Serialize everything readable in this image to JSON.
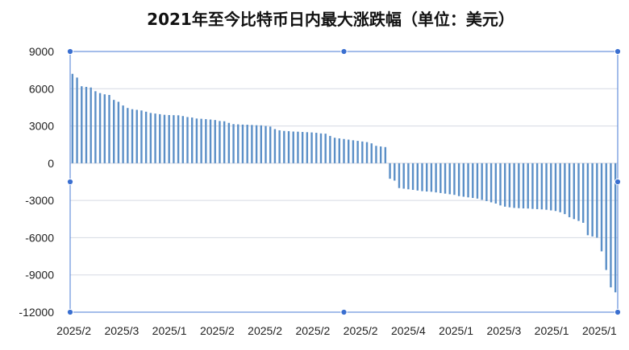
{
  "chart_data": {
    "type": "bar",
    "title": "2021年至今比特币日内最大涨跌幅（单位：美元）",
    "xlabel": "",
    "ylabel": "",
    "ylim": [
      -12000,
      9000
    ],
    "yticks": [
      9000,
      6000,
      3000,
      0,
      -3000,
      -6000,
      -9000,
      -12000
    ],
    "xtick_labels": [
      "2025/2",
      "2025/3",
      "2025/1",
      "2025/2",
      "2025/2",
      "2025/2",
      "2025/2",
      "2025/4",
      "2025/1",
      "2025/3",
      "2025/1",
      "2025/1"
    ],
    "grid": true,
    "legend": "none",
    "bar_color": "#5b8fc7",
    "values": [
      7200,
      6900,
      6200,
      6150,
      6100,
      5800,
      5650,
      5550,
      5500,
      5100,
      4950,
      4650,
      4450,
      4350,
      4300,
      4250,
      4150,
      4050,
      4000,
      3950,
      3900,
      3880,
      3870,
      3860,
      3800,
      3720,
      3680,
      3600,
      3580,
      3550,
      3520,
      3480,
      3400,
      3380,
      3250,
      3150,
      3130,
      3110,
      3100,
      3080,
      3060,
      3050,
      3000,
      2950,
      2750,
      2650,
      2600,
      2580,
      2550,
      2540,
      2520,
      2500,
      2480,
      2450,
      2400,
      2380,
      2200,
      2050,
      2000,
      1950,
      1900,
      1850,
      1800,
      1750,
      1700,
      1600,
      1400,
      1350,
      1300,
      -1250,
      -1400,
      -2000,
      -2050,
      -2100,
      -2150,
      -2200,
      -2250,
      -2280,
      -2300,
      -2350,
      -2400,
      -2450,
      -2500,
      -2550,
      -2650,
      -2700,
      -2750,
      -2800,
      -2850,
      -2950,
      -3050,
      -3150,
      -3250,
      -3400,
      -3500,
      -3550,
      -3600,
      -3620,
      -3640,
      -3650,
      -3680,
      -3700,
      -3720,
      -3750,
      -3800,
      -3850,
      -3950,
      -4100,
      -4350,
      -4500,
      -4650,
      -4800,
      -5800,
      -5900,
      -6000,
      -7100,
      -8600,
      -10000,
      -10400
    ]
  }
}
